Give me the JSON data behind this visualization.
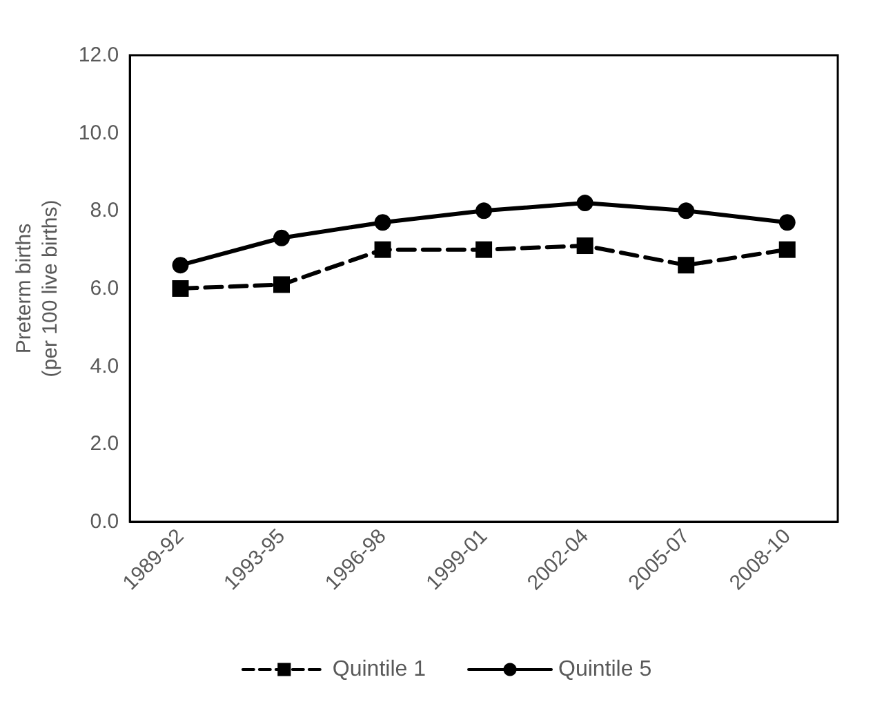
{
  "chart_data": {
    "type": "line",
    "ylabel": "Preterm births\n(per 100 live births)",
    "categories": [
      "1989-92",
      "1993-95",
      "1996-98",
      "1999-01",
      "2002-04",
      "2005-07",
      "2008-10"
    ],
    "series": [
      {
        "name": "Quintile 1",
        "color": "#000000",
        "marker": "square",
        "line_style": "dashed",
        "values": [
          6.0,
          6.1,
          7.0,
          7.0,
          7.1,
          6.6,
          7.0
        ]
      },
      {
        "name": "Quintile 5",
        "color": "#000000",
        "marker": "circle",
        "line_style": "solid",
        "values": [
          6.6,
          7.3,
          7.7,
          8.0,
          8.2,
          8.0,
          7.7
        ]
      }
    ],
    "ylim": [
      0,
      12
    ],
    "yticks": [
      {
        "value": 0,
        "label": "0.0"
      },
      {
        "value": 2,
        "label": "2.0"
      },
      {
        "value": 4,
        "label": "4.0"
      },
      {
        "value": 6,
        "label": "6.0"
      },
      {
        "value": 8,
        "label": "8.0"
      },
      {
        "value": 10,
        "label": "10.0"
      },
      {
        "value": 12,
        "label": "12.0"
      }
    ],
    "grid": false,
    "legend": "bottom"
  }
}
